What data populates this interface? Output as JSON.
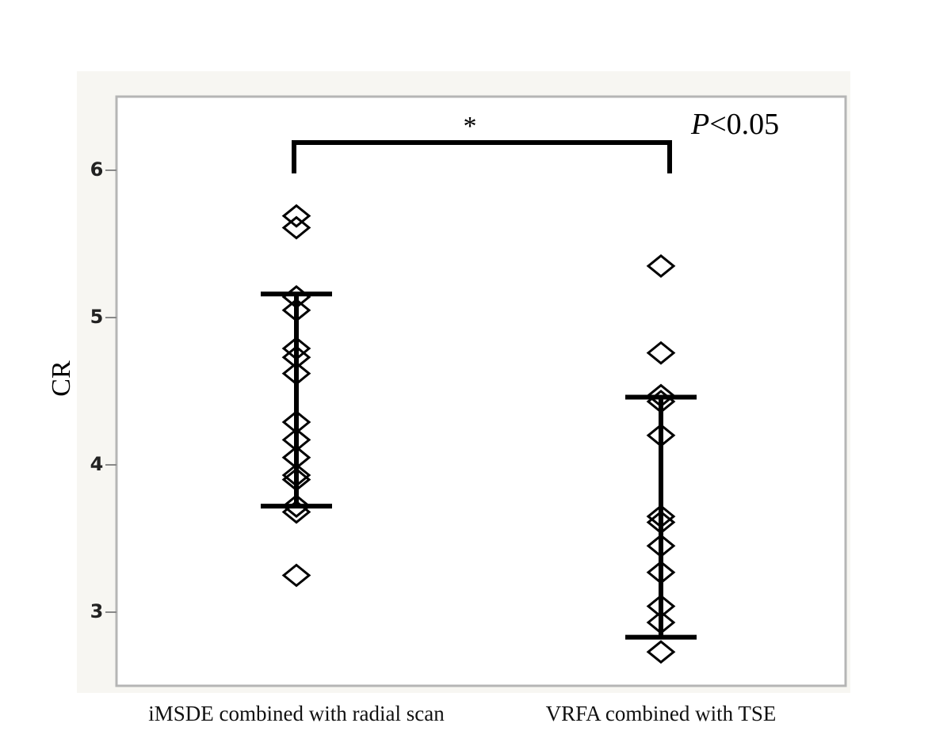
{
  "chart_data": {
    "type": "dot",
    "y_label": "CR",
    "categories": [
      "iMSDE combined with radial scan",
      "VRFA combined with TSE"
    ],
    "values": [
      [
        5.69,
        5.61,
        5.14,
        5.05,
        4.79,
        4.73,
        4.62,
        4.29,
        4.17,
        4.05,
        3.93,
        3.9,
        3.72,
        3.68,
        3.25
      ],
      [
        5.35,
        4.76,
        4.47,
        4.43,
        4.2,
        3.65,
        3.61,
        3.45,
        3.27,
        3.04,
        2.93,
        2.73
      ]
    ],
    "error_bars": [
      {
        "low": 3.72,
        "high": 5.16
      },
      {
        "low": 2.83,
        "high": 4.46
      }
    ],
    "ylim": [
      2.5,
      6.5
    ],
    "yticks": [
      3,
      4,
      5,
      6
    ],
    "significance_mark": "*",
    "p_symbol": "P",
    "p_threshold": "<0.05",
    "color": "#000000"
  }
}
